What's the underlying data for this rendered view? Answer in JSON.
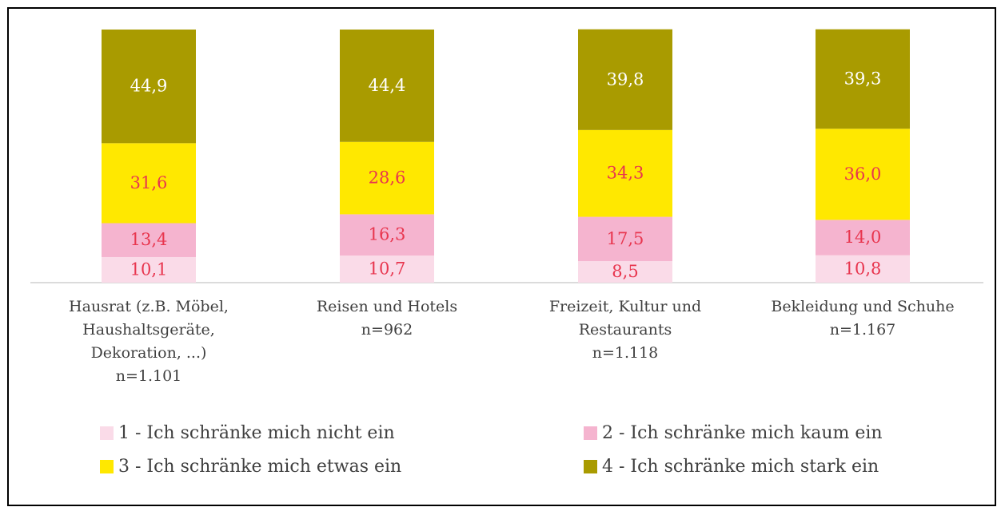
{
  "chart_data": {
    "type": "stacked_bar",
    "categories": [
      "Hausrat (z.B. Möbel, Haushaltsgeräte, Dekoration, ...)",
      "Reisen und Hotels",
      "Freizeit, Kultur und Restaurants",
      "Bekleidung und Schuhe"
    ],
    "sample_sizes": [
      "n=1.101",
      "n=962",
      "n=1.118",
      "n=1.167"
    ],
    "ylim": [
      0,
      100
    ],
    "series": [
      {
        "name": "1 - Ich schränke mich nicht ein",
        "color": "#fadbe8",
        "label_color": "#e8364f",
        "values": [
          10.1,
          10.7,
          8.5,
          10.8
        ],
        "value_labels": [
          "10,1",
          "10,7",
          "8,5",
          "10,8"
        ]
      },
      {
        "name": "2 - Ich schränke mich kaum ein",
        "color": "#f5b4cf",
        "label_color": "#e8364f",
        "values": [
          13.4,
          16.3,
          17.5,
          14.0
        ],
        "value_labels": [
          "13,4",
          "16,3",
          "17,5",
          "14,0"
        ]
      },
      {
        "name": "3 - Ich schränke mich etwas ein",
        "color": "#ffe800",
        "label_color": "#e8364f",
        "values": [
          31.6,
          28.6,
          34.3,
          36.0
        ],
        "value_labels": [
          "31,6",
          "28,6",
          "34,3",
          "36,0"
        ]
      },
      {
        "name": "4 - Ich schränke mich stark ein",
        "color": "#a99b00",
        "label_color": "#ffffff",
        "values": [
          44.9,
          44.4,
          39.8,
          39.3
        ],
        "value_labels": [
          "44,9",
          "44,4",
          "39,8",
          "39,3"
        ]
      }
    ]
  }
}
